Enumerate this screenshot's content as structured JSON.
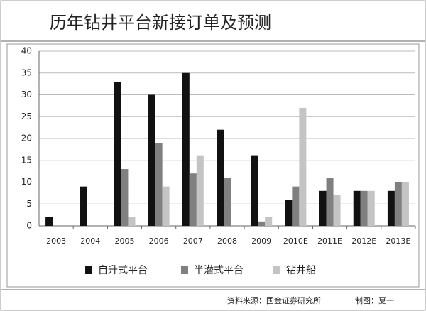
{
  "chart_data": {
    "type": "bar",
    "title": "历年钻井平台新接订单及预测",
    "categories": [
      "2003",
      "2004",
      "2005",
      "2006",
      "2007",
      "2008",
      "2009",
      "2010E",
      "2011E",
      "2012E",
      "2013E"
    ],
    "series": [
      {
        "name": "自升式平台",
        "color": "#111111",
        "values": [
          2,
          9,
          33,
          30,
          35,
          22,
          16,
          6,
          8,
          8,
          8
        ]
      },
      {
        "name": "半潜式平台",
        "color": "#808080",
        "values": [
          0,
          0,
          13,
          19,
          12,
          11,
          1,
          9,
          11,
          8,
          10
        ]
      },
      {
        "name": "钻井船",
        "color": "#c4c4c4",
        "values": [
          0,
          0,
          2,
          9,
          16,
          0,
          2,
          27,
          7,
          8,
          10
        ]
      }
    ],
    "ylim": [
      0,
      40
    ],
    "yticks": [
      0,
      5,
      10,
      15,
      20,
      25,
      30,
      35,
      40
    ],
    "grid": true,
    "source": "资料来源：国金证券研究所",
    "credit": "制图：夏一"
  }
}
